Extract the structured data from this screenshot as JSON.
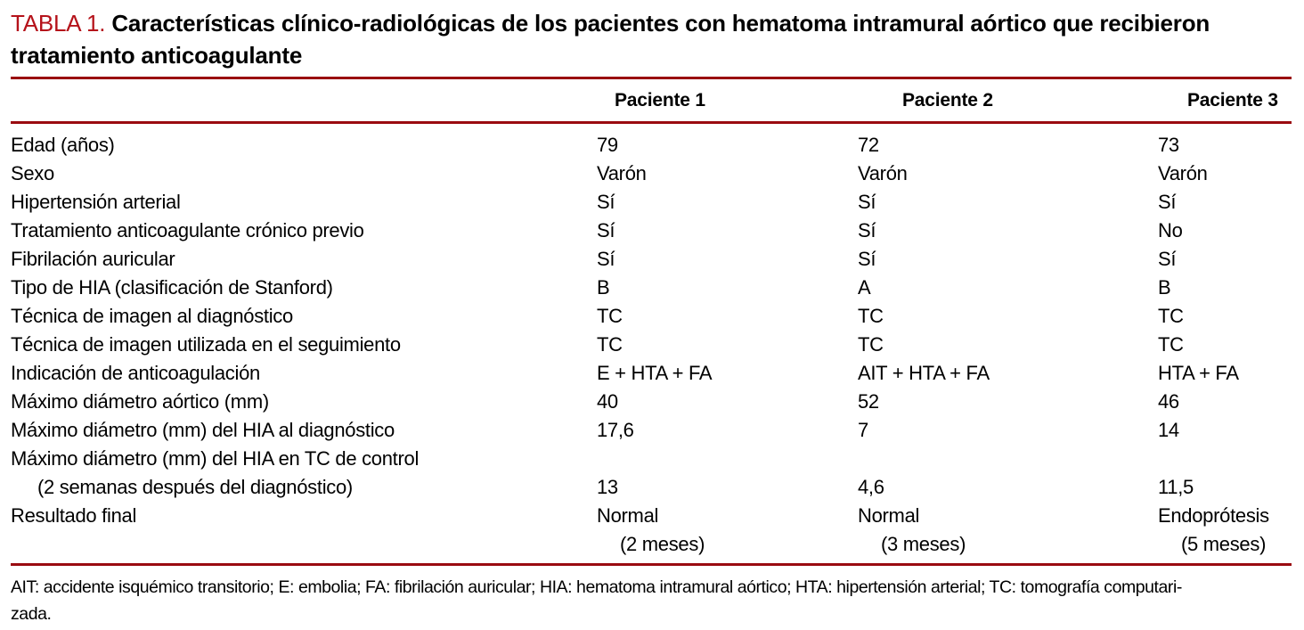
{
  "title": {
    "tag": "TABLA 1.",
    "text": "Características clínico-radiológicas de los pacientes con hematoma intramural aórtico que recibieron tratamiento anticoagulante"
  },
  "table": {
    "columns": [
      "Paciente 1",
      "Paciente 2",
      "Paciente 3"
    ],
    "rows": [
      {
        "label": "Edad (años)",
        "p1": "79",
        "p2": "72",
        "p3": "73"
      },
      {
        "label": "Sexo",
        "p1": "Varón",
        "p2": "Varón",
        "p3": "Varón"
      },
      {
        "label": "Hipertensión arterial",
        "p1": "Sí",
        "p2": "Sí",
        "p3": "Sí"
      },
      {
        "label": "Tratamiento anticoagulante crónico previo",
        "p1": "Sí",
        "p2": "Sí",
        "p3": "No"
      },
      {
        "label": "Fibrilación auricular",
        "p1": "Sí",
        "p2": "Sí",
        "p3": "Sí"
      },
      {
        "label": "Tipo de HIA (clasificación de Stanford)",
        "p1": "B",
        "p2": "A",
        "p3": "B"
      },
      {
        "label": "Técnica de imagen al diagnóstico",
        "p1": "TC",
        "p2": "TC",
        "p3": "TC"
      },
      {
        "label": "Técnica de imagen utilizada en el seguimiento",
        "p1": "TC",
        "p2": "TC",
        "p3": "TC"
      },
      {
        "label": "Indicación de anticoagulación",
        "p1": "E + HTA + FA",
        "p2": "AIT + HTA + FA",
        "p3": "HTA + FA"
      },
      {
        "label": "Máximo diámetro aórtico (mm)",
        "p1": "40",
        "p2": "52",
        "p3": "46"
      },
      {
        "label": "Máximo diámetro (mm) del HIA al diagnóstico",
        "p1": "17,6",
        "p2": "7",
        "p3": "14"
      },
      {
        "label": "Máximo diámetro (mm) del HIA en TC de control",
        "p1": "",
        "p2": "",
        "p3": ""
      },
      {
        "label": "(2 semanas después del diagnóstico)",
        "p1": "13",
        "p2": "4,6",
        "p3": "11,5"
      },
      {
        "label": "Resultado final",
        "p1": "Normal",
        "p2": "Normal",
        "p3": "Endoprótesis"
      },
      {
        "label": "",
        "p1": "(2 meses)",
        "p2": "(3 meses)",
        "p3": "(5 meses)"
      }
    ]
  },
  "footnote": {
    "line1": "AIT: accidente isquémico transitorio; E: embolia; FA: fibrilación auricular; HIA: hematoma intramural aórtico; HTA: hipertensión arterial; TC: tomografía computari-",
    "line2": "zada."
  },
  "colors": {
    "accent_red": "#b5121a",
    "rule_red": "#9a0b10"
  }
}
